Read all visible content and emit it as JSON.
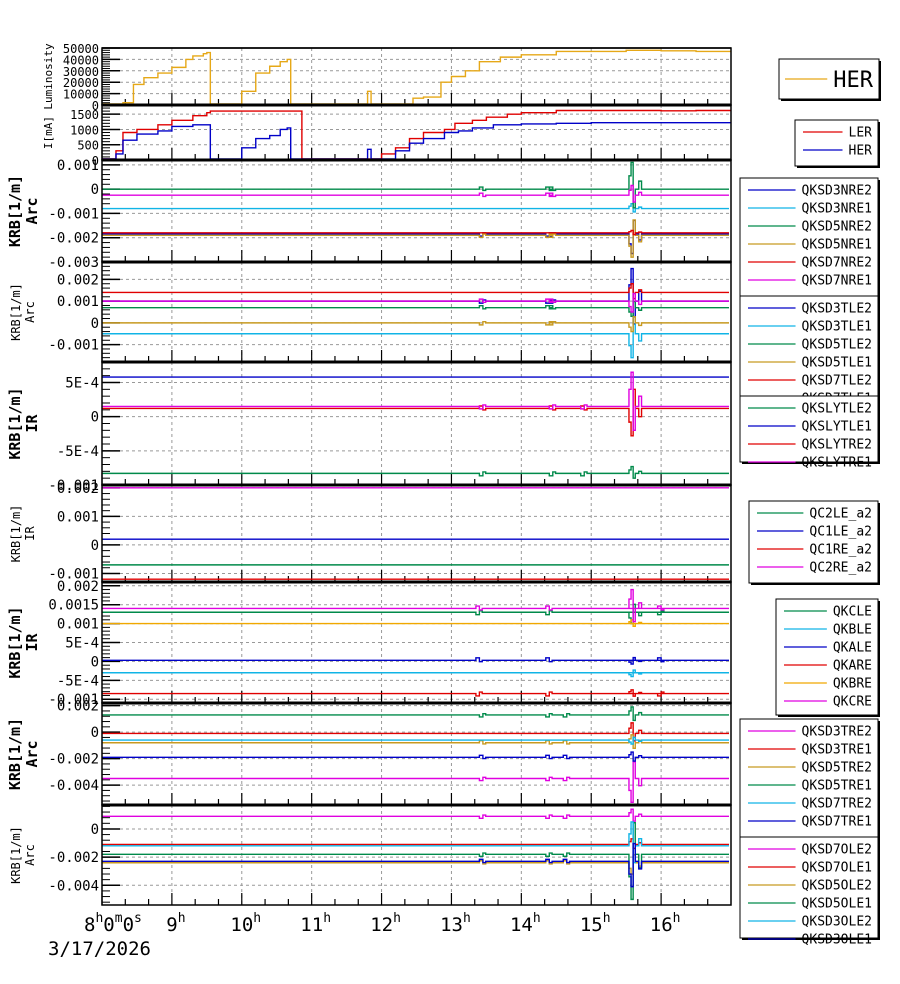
{
  "colors": {
    "gold": "#e6a817",
    "red": "#e00000",
    "blue": "#0000c8",
    "cyan": "#10b4e6",
    "green": "#008a4a",
    "tan": "#c89a20",
    "magenta": "#e000e0",
    "orange": "#f0a800",
    "grid": "#999999"
  },
  "footer": {
    "date": "3/17/2026"
  },
  "chart_data": [
    {
      "id": "lum",
      "type": "line",
      "ylabel": [
        "Luminosity"
      ],
      "ylim": [
        0,
        50000
      ],
      "yticks": [
        0,
        10000,
        20000,
        30000,
        40000,
        50000
      ],
      "ytick_labels": [
        "0",
        "10000",
        "20000",
        "30000",
        "40000",
        "50000"
      ],
      "legend": {
        "position": "right",
        "size": "large"
      },
      "series": [
        {
          "name": "HER",
          "color": "gold",
          "points": [
            [
              8,
              0
            ],
            [
              8.2,
              0
            ],
            [
              8.3,
              2000
            ],
            [
              8.45,
              18000
            ],
            [
              8.6,
              24000
            ],
            [
              8.8,
              28000
            ],
            [
              9,
              33000
            ],
            [
              9.2,
              40000
            ],
            [
              9.3,
              43000
            ],
            [
              9.45,
              45000
            ],
            [
              9.5,
              46000
            ],
            [
              9.55,
              0
            ],
            [
              9.8,
              0
            ],
            [
              10,
              12000
            ],
            [
              10.2,
              28000
            ],
            [
              10.4,
              34000
            ],
            [
              10.55,
              38000
            ],
            [
              10.65,
              40000
            ],
            [
              10.7,
              0
            ],
            [
              11.7,
              0
            ],
            [
              11.8,
              12000
            ],
            [
              11.85,
              0
            ],
            [
              12.3,
              0
            ],
            [
              12.45,
              6000
            ],
            [
              12.6,
              7000
            ],
            [
              12.85,
              20000
            ],
            [
              13,
              25000
            ],
            [
              13.2,
              30000
            ],
            [
              13.4,
              38000
            ],
            [
              13.7,
              42000
            ],
            [
              14,
              44000
            ],
            [
              14.5,
              47000
            ],
            [
              15,
              47000
            ],
            [
              15.5,
              48000
            ],
            [
              16,
              47500
            ],
            [
              16.5,
              47000
            ],
            [
              17,
              47000
            ]
          ]
        }
      ]
    },
    {
      "id": "cur",
      "type": "line",
      "ylabel": [
        "I[mA]"
      ],
      "ylim": [
        0,
        1800
      ],
      "yticks": [
        0,
        500,
        1000,
        1500
      ],
      "ytick_labels": [
        "0",
        "500",
        "1000",
        "1500"
      ],
      "legend": {
        "position": "right"
      },
      "series": [
        {
          "name": "LER",
          "color": "red",
          "points": [
            [
              8,
              0
            ],
            [
              8.1,
              0
            ],
            [
              8.2,
              300
            ],
            [
              8.3,
              900
            ],
            [
              8.5,
              1000
            ],
            [
              8.8,
              1150
            ],
            [
              9,
              1300
            ],
            [
              9.3,
              1450
            ],
            [
              9.5,
              1550
            ],
            [
              9.55,
              1600
            ],
            [
              10.5,
              1600
            ],
            [
              10.85,
              1600
            ],
            [
              10.86,
              0
            ],
            [
              11.9,
              0
            ],
            [
              12,
              200
            ],
            [
              12.2,
              400
            ],
            [
              12.4,
              700
            ],
            [
              12.6,
              900
            ],
            [
              12.9,
              1000
            ],
            [
              13.05,
              1200
            ],
            [
              13.3,
              1300
            ],
            [
              13.5,
              1400
            ],
            [
              13.8,
              1500
            ],
            [
              14,
              1550
            ],
            [
              14.5,
              1620
            ],
            [
              15,
              1620
            ],
            [
              15.5,
              1620
            ],
            [
              16,
              1610
            ],
            [
              16.5,
              1620
            ],
            [
              17,
              1620
            ]
          ]
        },
        {
          "name": "HER",
          "color": "blue",
          "points": [
            [
              8,
              0
            ],
            [
              8.1,
              0
            ],
            [
              8.2,
              200
            ],
            [
              8.3,
              650
            ],
            [
              8.5,
              850
            ],
            [
              8.8,
              950
            ],
            [
              9,
              1100
            ],
            [
              9.3,
              1150
            ],
            [
              9.5,
              1150
            ],
            [
              9.55,
              0
            ],
            [
              9.8,
              0
            ],
            [
              10,
              400
            ],
            [
              10.2,
              700
            ],
            [
              10.4,
              800
            ],
            [
              10.55,
              1000
            ],
            [
              10.65,
              1050
            ],
            [
              10.7,
              0
            ],
            [
              11.7,
              0
            ],
            [
              11.8,
              350
            ],
            [
              11.85,
              0
            ],
            [
              12,
              0
            ],
            [
              12.2,
              300
            ],
            [
              12.4,
              550
            ],
            [
              12.6,
              700
            ],
            [
              12.9,
              900
            ],
            [
              13.1,
              950
            ],
            [
              13.3,
              1050
            ],
            [
              13.6,
              1150
            ],
            [
              14,
              1180
            ],
            [
              14.5,
              1200
            ],
            [
              15,
              1220
            ],
            [
              16,
              1220
            ],
            [
              17,
              1220
            ]
          ]
        }
      ]
    },
    {
      "id": "arc1",
      "type": "line",
      "ylabel": [
        "KRB[1/m]",
        "Arc"
      ],
      "ylabel_size": "large",
      "ylim": [
        -0.003,
        0.0012
      ],
      "yticks": [
        0.001,
        0,
        -0.001,
        -0.002,
        -0.003
      ],
      "ytick_labels": [
        "0.001",
        "0",
        "-0.001",
        "-0.002",
        "-0.003"
      ],
      "legend": {
        "position": "right"
      },
      "transient": 15.6,
      "glitches": [
        13.4,
        14.35,
        14.4
      ],
      "series": [
        {
          "name": "QKSD3NRE2",
          "color": "blue",
          "value": -0.00185,
          "spike": -0.0008
        },
        {
          "name": "QKSD3NRE1",
          "color": "cyan",
          "value": -0.0008,
          "spike": 0.0002
        },
        {
          "name": "QKSD5NRE2",
          "color": "green",
          "value": 0.0,
          "spike": 0.0011
        },
        {
          "name": "QKSD5NRE1",
          "color": "tan",
          "value": -0.0019,
          "spike": -0.0009
        },
        {
          "name": "QKSD7NRE2",
          "color": "red",
          "value": -0.0018,
          "spike": 0.0001
        },
        {
          "name": "QKSD7NRE1",
          "color": "magenta",
          "value": -0.00025,
          "spike": 0.0004
        }
      ]
    },
    {
      "id": "arc2",
      "type": "line",
      "ylabel": [
        "KRB[1/m]",
        "Arc"
      ],
      "ylabel_size": "small",
      "ylim": [
        -0.0018,
        0.0028
      ],
      "yticks": [
        0.002,
        0.001,
        0,
        -0.001
      ],
      "ytick_labels": [
        "0.002",
        "0.001",
        "0",
        "-0.001"
      ],
      "legend": {
        "position": "right"
      },
      "transient": 15.6,
      "glitches": [
        13.4,
        14.35,
        14.4
      ],
      "series": [
        {
          "name": "QKSD3TLE2",
          "color": "blue",
          "value": 0.001,
          "spike": 0.0015
        },
        {
          "name": "QKSD3TLE1",
          "color": "cyan",
          "value": -0.0005,
          "spike": -0.0011
        },
        {
          "name": "QKSD5TLE2",
          "color": "green",
          "value": 0.0007,
          "spike": -0.0004
        },
        {
          "name": "QKSD5TLE1",
          "color": "tan",
          "value": 0.0,
          "spike": -0.0004
        },
        {
          "name": "QKSD7TLE2",
          "color": "red",
          "value": 0.0014,
          "spike": 0.0004
        },
        {
          "name": "QKSD7TLE1",
          "color": "magenta",
          "value": 0.001,
          "spike": -0.0005
        }
      ]
    },
    {
      "id": "ir1",
      "type": "line",
      "ylabel": [
        "KRB[1/m]",
        "IR"
      ],
      "ylabel_size": "large",
      "ylim": [
        -0.001,
        0.0008
      ],
      "yticks": [
        0.0005,
        0,
        -0.0005,
        -0.001
      ],
      "ytick_labels": [
        "5E-4",
        "0",
        "-5E-4",
        "-0.001"
      ],
      "legend": {
        "position": "right"
      },
      "transient": 15.6,
      "glitches": [
        13.4,
        14.4,
        14.85
      ],
      "series": [
        {
          "name": "QKSLYTLE2",
          "color": "green",
          "value": -0.00083,
          "spike": 0.0001
        },
        {
          "name": "QKSLYTLE1",
          "color": "blue",
          "value": 0.00058,
          "spike": 0.0
        },
        {
          "name": "QKSLYTRE2",
          "color": "red",
          "value": 0.00012,
          "spike": -0.0004
        },
        {
          "name": "QKSLYTRE1",
          "color": "magenta",
          "value": 0.00015,
          "spike": 0.0005
        }
      ]
    },
    {
      "id": "ir2",
      "type": "line",
      "ylabel": [
        "KRB[1/m]",
        "IR"
      ],
      "ylabel_size": "small",
      "ylim": [
        -0.0013,
        0.0021
      ],
      "yticks": [
        0.002,
        0.001,
        0,
        -0.001
      ],
      "ytick_labels": [
        "0.002",
        "0.001",
        "0",
        "-0.001"
      ],
      "legend": {
        "position": "right"
      },
      "series": [
        {
          "name": "QC2LE_a2",
          "color": "green",
          "value": -0.0007
        },
        {
          "name": "QC1LE_a2",
          "color": "blue",
          "value": 0.0002
        },
        {
          "name": "QC1RE_a2",
          "color": "red",
          "value": -0.0012
        },
        {
          "name": "QC2RE_a2",
          "color": "magenta",
          "value": 0.002
        }
      ]
    },
    {
      "id": "ir3",
      "type": "line",
      "ylabel": [
        "KRB[1/m]",
        "IR"
      ],
      "ylabel_size": "large",
      "ylim": [
        -0.0011,
        0.0021
      ],
      "yticks": [
        0.002,
        0.0015,
        0.001,
        0.0005,
        0,
        -0.0005,
        -0.001
      ],
      "ytick_labels": [
        "0.002",
        "0.0015",
        "0.001",
        "5E-4",
        "0",
        "-5E-4",
        "-0.001"
      ],
      "legend": {
        "position": "right"
      },
      "transient": 15.6,
      "glitches": [
        13.35,
        14.35,
        15.95
      ],
      "series": [
        {
          "name": "QKCLE",
          "color": "green",
          "value": 0.0013,
          "spike": -0.0003
        },
        {
          "name": "QKBLE",
          "color": "cyan",
          "value": -0.0003,
          "spike": -0.0001
        },
        {
          "name": "QKALE",
          "color": "blue",
          "value": 3e-05,
          "spike": -0.0001
        },
        {
          "name": "QKARE",
          "color": "red",
          "value": -0.00085,
          "spike": 0.0001
        },
        {
          "name": "QKBRE",
          "color": "orange",
          "value": 0.001,
          "spike": 0.0001
        },
        {
          "name": "QKCRE",
          "color": "magenta",
          "value": 0.0014,
          "spike": 0.0005
        }
      ]
    },
    {
      "id": "arc3",
      "type": "line",
      "ylabel": [
        "KRB[1/m]",
        "Arc"
      ],
      "ylabel_size": "large",
      "ylim": [
        -0.0055,
        0.0022
      ],
      "yticks": [
        0.002,
        0,
        -0.002,
        -0.004
      ],
      "ytick_labels": [
        "0.002",
        "0",
        "-0.002",
        "-0.004"
      ],
      "legend": {
        "position": "right"
      },
      "transient": 15.6,
      "glitches": [
        13.4,
        14.35,
        14.6
      ],
      "series": [
        {
          "name": "QKSD3TRE2",
          "color": "magenta",
          "value": -0.0035,
          "spike": -0.0018
        },
        {
          "name": "QKSD3TRE1",
          "color": "red",
          "value": -0.0001,
          "spike": 0.0008
        },
        {
          "name": "QKSD5TRE2",
          "color": "tan",
          "value": -0.0008,
          "spike": 0.0006
        },
        {
          "name": "QKSD5TRE1",
          "color": "green",
          "value": 0.0013,
          "spike": 0.0006
        },
        {
          "name": "QKSD7TRE2",
          "color": "cyan",
          "value": -0.0006,
          "spike": -0.0003
        },
        {
          "name": "QKSD7TRE1",
          "color": "blue",
          "value": -0.0019,
          "spike": 0.0004
        }
      ]
    },
    {
      "id": "arc4",
      "type": "line",
      "ylabel": [
        "KRB[1/m]",
        "Arc"
      ],
      "ylabel_size": "small",
      "ylim": [
        -0.0054,
        0.0017
      ],
      "yticks": [
        0,
        -0.002,
        -0.004
      ],
      "ytick_labels": [
        "0",
        "-0.002",
        "-0.004"
      ],
      "legend": {
        "position": "right"
      },
      "transient": 15.6,
      "glitches": [
        13.4,
        14.35,
        14.6
      ],
      "xaxis": true,
      "series": [
        {
          "name": "QKSD7OLE2",
          "color": "magenta",
          "value": 0.0009,
          "spike": 0.0005
        },
        {
          "name": "QKSD7OLE1",
          "color": "red",
          "value": -0.0011,
          "spike": 0.0004
        },
        {
          "name": "QKSD5OLE2",
          "color": "tan",
          "value": -0.0024,
          "spike": -0.0008
        },
        {
          "name": "QKSD5OLE1",
          "color": "green",
          "value": -0.0018,
          "spike": -0.0032
        },
        {
          "name": "QKSD3OLE2",
          "color": "cyan",
          "value": -0.0012,
          "spike": 0.0017
        },
        {
          "name": "QKSD3OLE1",
          "color": "blue",
          "value": -0.0023,
          "spike": -0.0018
        }
      ]
    }
  ],
  "xaxis": {
    "range": [
      8,
      17
    ],
    "ticks": [
      8,
      9,
      10,
      11,
      12,
      13,
      14,
      15,
      16
    ],
    "tick_labels": [
      {
        "main": "8",
        "sup": "h",
        "extra": [
          [
            "0",
            "m"
          ],
          [
            "0",
            "s"
          ]
        ]
      },
      {
        "main": "9",
        "sup": "h"
      },
      {
        "main": "10",
        "sup": "h"
      },
      {
        "main": "11",
        "sup": "h"
      },
      {
        "main": "12",
        "sup": "h"
      },
      {
        "main": "13",
        "sup": "h"
      },
      {
        "main": "14",
        "sup": "h"
      },
      {
        "main": "15",
        "sup": "h"
      },
      {
        "main": "16",
        "sup": "h"
      }
    ]
  }
}
